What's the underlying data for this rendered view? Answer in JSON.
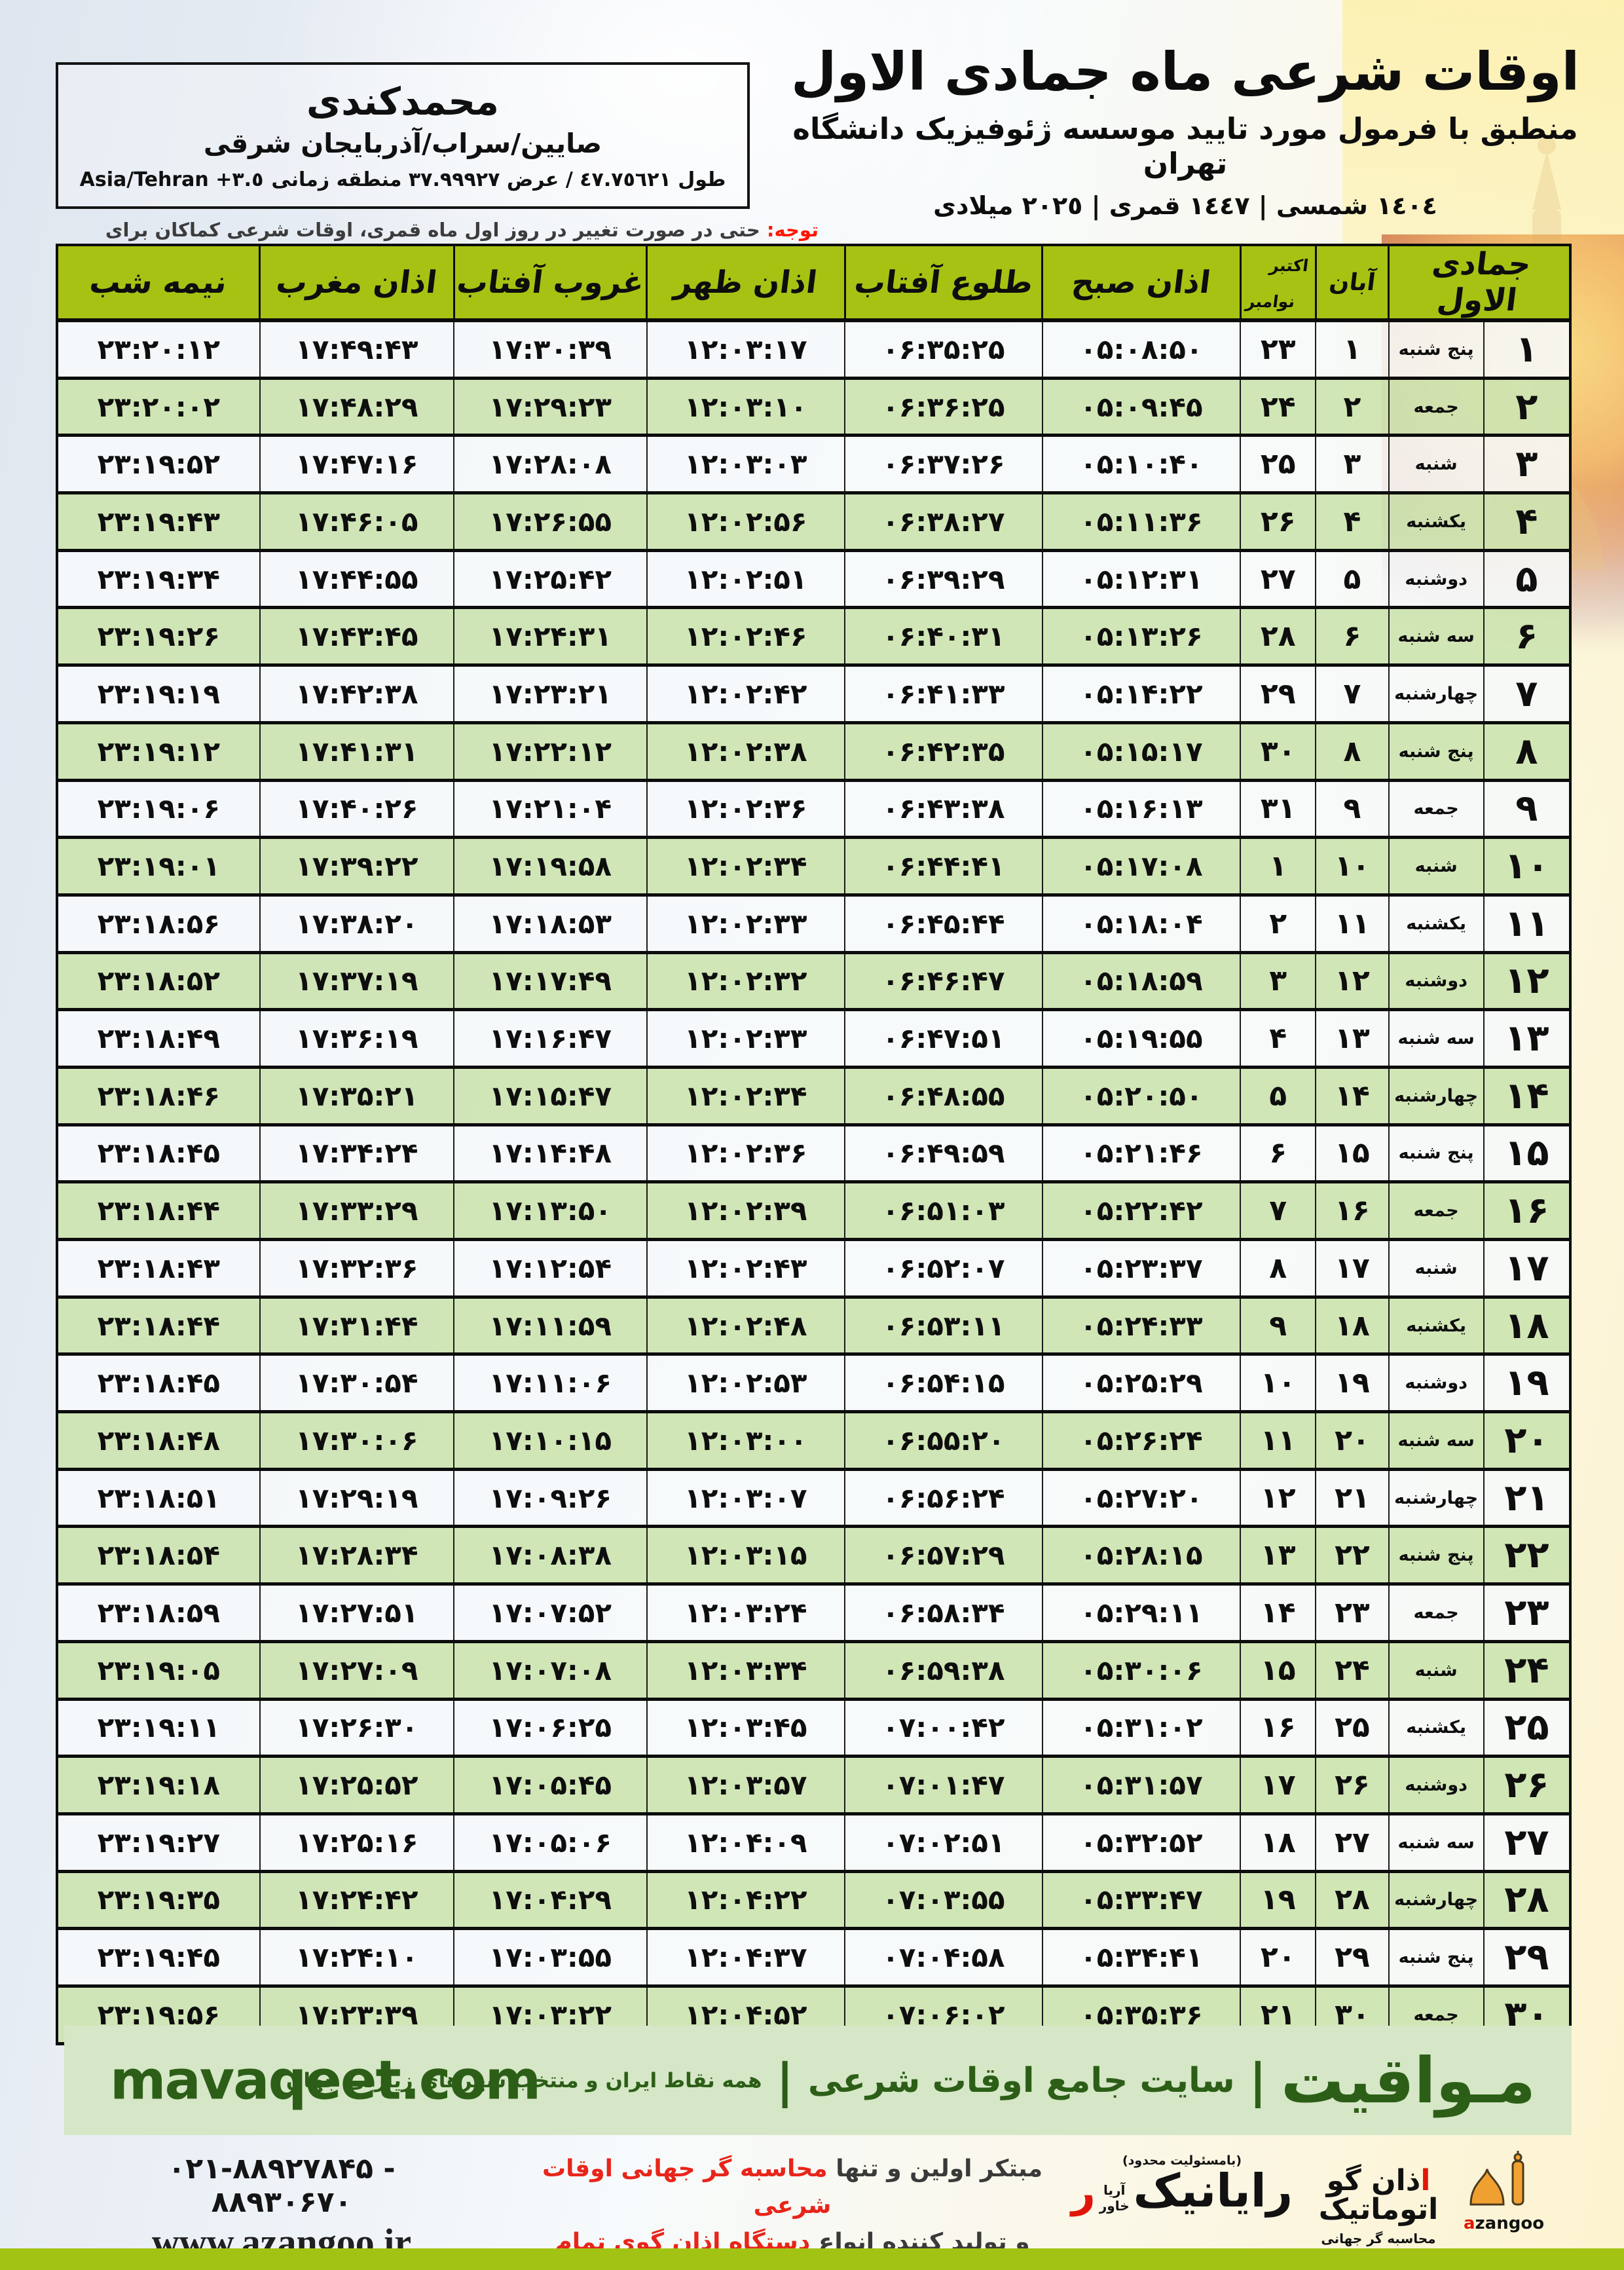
{
  "header": {
    "title": "اوقات شرعی ماه جمادی الاول",
    "subtitle": "منطبق با فرمول مورد تایید موسسه ژئوفیزیک دانشگاه تهران",
    "dates": "١٤٠٤ شمسی | ١٤٤٧ قمری | ٢٠٢٥ میلادی"
  },
  "location": {
    "name": "محمدکندی",
    "region": "صایین/سراب/آذربایجان شرقی",
    "coords_fa": "طول ٤٧.٧٥٦٢١ / عرض ٣٧.٩٩٩٢٧ منطقه زمانی",
    "coords_tz": "Asia/Tehran +٣.٥"
  },
  "note": {
    "label": "توجه:",
    "text": "حتی در صورت تغییر در روز اول ماه قمری، اوقات شرعی کماکان برای روزهای شمسی و میلادی معتبر است."
  },
  "table": {
    "headers": {
      "jamadi": "جمادی الاول",
      "aban": "آبان",
      "october": "اکتبر",
      "november": "نوامبر",
      "sobh": "اذان صبح",
      "tolu": "طلوع آفتاب",
      "zohr": "اذان ظهر",
      "ghorub": "غروب آفتاب",
      "maghreb": "اذان مغرب",
      "nimeshab": "نیمه شب"
    },
    "rows": [
      {
        "d": "۱",
        "wd": "پنج شنبه",
        "aban": "۱",
        "greg": "۲۳",
        "sobh": "۰۵:۰۸:۵۰",
        "tolu": "۰۶:۳۵:۲۵",
        "zohr": "۱۲:۰۳:۱۷",
        "ghorub": "۱۷:۳۰:۳۹",
        "maghreb": "۱۷:۴۹:۴۳",
        "nime": "۲۳:۲۰:۱۲",
        "friday": false
      },
      {
        "d": "۲",
        "wd": "جمعه",
        "aban": "۲",
        "greg": "۲۴",
        "sobh": "۰۵:۰۹:۴۵",
        "tolu": "۰۶:۳۶:۲۵",
        "zohr": "۱۲:۰۳:۱۰",
        "ghorub": "۱۷:۲۹:۲۳",
        "maghreb": "۱۷:۴۸:۲۹",
        "nime": "۲۳:۲۰:۰۲",
        "friday": true
      },
      {
        "d": "۳",
        "wd": "شنبه",
        "aban": "۳",
        "greg": "۲۵",
        "sobh": "۰۵:۱۰:۴۰",
        "tolu": "۰۶:۳۷:۲۶",
        "zohr": "۱۲:۰۳:۰۳",
        "ghorub": "۱۷:۲۸:۰۸",
        "maghreb": "۱۷:۴۷:۱۶",
        "nime": "۲۳:۱۹:۵۲",
        "friday": false
      },
      {
        "d": "۴",
        "wd": "یکشنبه",
        "aban": "۴",
        "greg": "۲۶",
        "sobh": "۰۵:۱۱:۳۶",
        "tolu": "۰۶:۳۸:۲۷",
        "zohr": "۱۲:۰۲:۵۶",
        "ghorub": "۱۷:۲۶:۵۵",
        "maghreb": "۱۷:۴۶:۰۵",
        "nime": "۲۳:۱۹:۴۳",
        "friday": false
      },
      {
        "d": "۵",
        "wd": "دوشنبه",
        "aban": "۵",
        "greg": "۲۷",
        "sobh": "۰۵:۱۲:۳۱",
        "tolu": "۰۶:۳۹:۲۹",
        "zohr": "۱۲:۰۲:۵۱",
        "ghorub": "۱۷:۲۵:۴۲",
        "maghreb": "۱۷:۴۴:۵۵",
        "nime": "۲۳:۱۹:۳۴",
        "friday": false
      },
      {
        "d": "۶",
        "wd": "سه شنبه",
        "aban": "۶",
        "greg": "۲۸",
        "sobh": "۰۵:۱۳:۲۶",
        "tolu": "۰۶:۴۰:۳۱",
        "zohr": "۱۲:۰۲:۴۶",
        "ghorub": "۱۷:۲۴:۳۱",
        "maghreb": "۱۷:۴۳:۴۵",
        "nime": "۲۳:۱۹:۲۶",
        "friday": false
      },
      {
        "d": "۷",
        "wd": "چهارشنبه",
        "aban": "۷",
        "greg": "۲۹",
        "sobh": "۰۵:۱۴:۲۲",
        "tolu": "۰۶:۴۱:۳۳",
        "zohr": "۱۲:۰۲:۴۲",
        "ghorub": "۱۷:۲۳:۲۱",
        "maghreb": "۱۷:۴۲:۳۸",
        "nime": "۲۳:۱۹:۱۹",
        "friday": false
      },
      {
        "d": "۸",
        "wd": "پنج شنبه",
        "aban": "۸",
        "greg": "۳۰",
        "sobh": "۰۵:۱۵:۱۷",
        "tolu": "۰۶:۴۲:۳۵",
        "zohr": "۱۲:۰۲:۳۸",
        "ghorub": "۱۷:۲۲:۱۲",
        "maghreb": "۱۷:۴۱:۳۱",
        "nime": "۲۳:۱۹:۱۲",
        "friday": false
      },
      {
        "d": "۹",
        "wd": "جمعه",
        "aban": "۹",
        "greg": "۳۱",
        "sobh": "۰۵:۱۶:۱۳",
        "tolu": "۰۶:۴۳:۳۸",
        "zohr": "۱۲:۰۲:۳۶",
        "ghorub": "۱۷:۲۱:۰۴",
        "maghreb": "۱۷:۴۰:۲۶",
        "nime": "۲۳:۱۹:۰۶",
        "friday": true
      },
      {
        "d": "۱۰",
        "wd": "شنبه",
        "aban": "۱۰",
        "greg": "۱",
        "sobh": "۰۵:۱۷:۰۸",
        "tolu": "۰۶:۴۴:۴۱",
        "zohr": "۱۲:۰۲:۳۴",
        "ghorub": "۱۷:۱۹:۵۸",
        "maghreb": "۱۷:۳۹:۲۲",
        "nime": "۲۳:۱۹:۰۱",
        "friday": false
      },
      {
        "d": "۱۱",
        "wd": "یکشنبه",
        "aban": "۱۱",
        "greg": "۲",
        "sobh": "۰۵:۱۸:۰۴",
        "tolu": "۰۶:۴۵:۴۴",
        "zohr": "۱۲:۰۲:۳۳",
        "ghorub": "۱۷:۱۸:۵۳",
        "maghreb": "۱۷:۳۸:۲۰",
        "nime": "۲۳:۱۸:۵۶",
        "friday": false
      },
      {
        "d": "۱۲",
        "wd": "دوشنبه",
        "aban": "۱۲",
        "greg": "۳",
        "sobh": "۰۵:۱۸:۵۹",
        "tolu": "۰۶:۴۶:۴۷",
        "zohr": "۱۲:۰۲:۳۲",
        "ghorub": "۱۷:۱۷:۴۹",
        "maghreb": "۱۷:۳۷:۱۹",
        "nime": "۲۳:۱۸:۵۲",
        "friday": false
      },
      {
        "d": "۱۳",
        "wd": "سه شنبه",
        "aban": "۱۳",
        "greg": "۴",
        "sobh": "۰۵:۱۹:۵۵",
        "tolu": "۰۶:۴۷:۵۱",
        "zohr": "۱۲:۰۲:۳۳",
        "ghorub": "۱۷:۱۶:۴۷",
        "maghreb": "۱۷:۳۶:۱۹",
        "nime": "۲۳:۱۸:۴۹",
        "friday": false
      },
      {
        "d": "۱۴",
        "wd": "چهارشنبه",
        "aban": "۱۴",
        "greg": "۵",
        "sobh": "۰۵:۲۰:۵۰",
        "tolu": "۰۶:۴۸:۵۵",
        "zohr": "۱۲:۰۲:۳۴",
        "ghorub": "۱۷:۱۵:۴۷",
        "maghreb": "۱۷:۳۵:۲۱",
        "nime": "۲۳:۱۸:۴۶",
        "friday": false
      },
      {
        "d": "۱۵",
        "wd": "پنج شنبه",
        "aban": "۱۵",
        "greg": "۶",
        "sobh": "۰۵:۲۱:۴۶",
        "tolu": "۰۶:۴۹:۵۹",
        "zohr": "۱۲:۰۲:۳۶",
        "ghorub": "۱۷:۱۴:۴۸",
        "maghreb": "۱۷:۳۴:۲۴",
        "nime": "۲۳:۱۸:۴۵",
        "friday": false
      },
      {
        "d": "۱۶",
        "wd": "جمعه",
        "aban": "۱۶",
        "greg": "۷",
        "sobh": "۰۵:۲۲:۴۲",
        "tolu": "۰۶:۵۱:۰۳",
        "zohr": "۱۲:۰۲:۳۹",
        "ghorub": "۱۷:۱۳:۵۰",
        "maghreb": "۱۷:۳۳:۲۹",
        "nime": "۲۳:۱۸:۴۴",
        "friday": true
      },
      {
        "d": "۱۷",
        "wd": "شنبه",
        "aban": "۱۷",
        "greg": "۸",
        "sobh": "۰۵:۲۳:۳۷",
        "tolu": "۰۶:۵۲:۰۷",
        "zohr": "۱۲:۰۲:۴۳",
        "ghorub": "۱۷:۱۲:۵۴",
        "maghreb": "۱۷:۳۲:۳۶",
        "nime": "۲۳:۱۸:۴۳",
        "friday": false
      },
      {
        "d": "۱۸",
        "wd": "یکشنبه",
        "aban": "۱۸",
        "greg": "۹",
        "sobh": "۰۵:۲۴:۳۳",
        "tolu": "۰۶:۵۳:۱۱",
        "zohr": "۱۲:۰۲:۴۸",
        "ghorub": "۱۷:۱۱:۵۹",
        "maghreb": "۱۷:۳۱:۴۴",
        "nime": "۲۳:۱۸:۴۴",
        "friday": false
      },
      {
        "d": "۱۹",
        "wd": "دوشنبه",
        "aban": "۱۹",
        "greg": "۱۰",
        "sobh": "۰۵:۲۵:۲۹",
        "tolu": "۰۶:۵۴:۱۵",
        "zohr": "۱۲:۰۲:۵۳",
        "ghorub": "۱۷:۱۱:۰۶",
        "maghreb": "۱۷:۳۰:۵۴",
        "nime": "۲۳:۱۸:۴۵",
        "friday": false
      },
      {
        "d": "۲۰",
        "wd": "سه شنبه",
        "aban": "۲۰",
        "greg": "۱۱",
        "sobh": "۰۵:۲۶:۲۴",
        "tolu": "۰۶:۵۵:۲۰",
        "zohr": "۱۲:۰۳:۰۰",
        "ghorub": "۱۷:۱۰:۱۵",
        "maghreb": "۱۷:۳۰:۰۶",
        "nime": "۲۳:۱۸:۴۸",
        "friday": false
      },
      {
        "d": "۲۱",
        "wd": "چهارشنبه",
        "aban": "۲۱",
        "greg": "۱۲",
        "sobh": "۰۵:۲۷:۲۰",
        "tolu": "۰۶:۵۶:۲۴",
        "zohr": "۱۲:۰۳:۰۷",
        "ghorub": "۱۷:۰۹:۲۶",
        "maghreb": "۱۷:۲۹:۱۹",
        "nime": "۲۳:۱۸:۵۱",
        "friday": false
      },
      {
        "d": "۲۲",
        "wd": "پنج شنبه",
        "aban": "۲۲",
        "greg": "۱۳",
        "sobh": "۰۵:۲۸:۱۵",
        "tolu": "۰۶:۵۷:۲۹",
        "zohr": "۱۲:۰۳:۱۵",
        "ghorub": "۱۷:۰۸:۳۸",
        "maghreb": "۱۷:۲۸:۳۴",
        "nime": "۲۳:۱۸:۵۴",
        "friday": false
      },
      {
        "d": "۲۳",
        "wd": "جمعه",
        "aban": "۲۳",
        "greg": "۱۴",
        "sobh": "۰۵:۲۹:۱۱",
        "tolu": "۰۶:۵۸:۳۴",
        "zohr": "۱۲:۰۳:۲۴",
        "ghorub": "۱۷:۰۷:۵۲",
        "maghreb": "۱۷:۲۷:۵۱",
        "nime": "۲۳:۱۸:۵۹",
        "friday": true
      },
      {
        "d": "۲۴",
        "wd": "شنبه",
        "aban": "۲۴",
        "greg": "۱۵",
        "sobh": "۰۵:۳۰:۰۶",
        "tolu": "۰۶:۵۹:۳۸",
        "zohr": "۱۲:۰۳:۳۴",
        "ghorub": "۱۷:۰۷:۰۸",
        "maghreb": "۱۷:۲۷:۰۹",
        "nime": "۲۳:۱۹:۰۵",
        "friday": false
      },
      {
        "d": "۲۵",
        "wd": "یکشنبه",
        "aban": "۲۵",
        "greg": "۱۶",
        "sobh": "۰۵:۳۱:۰۲",
        "tolu": "۰۷:۰۰:۴۲",
        "zohr": "۱۲:۰۳:۴۵",
        "ghorub": "۱۷:۰۶:۲۵",
        "maghreb": "۱۷:۲۶:۳۰",
        "nime": "۲۳:۱۹:۱۱",
        "friday": false
      },
      {
        "d": "۲۶",
        "wd": "دوشنبه",
        "aban": "۲۶",
        "greg": "۱۷",
        "sobh": "۰۵:۳۱:۵۷",
        "tolu": "۰۷:۰۱:۴۷",
        "zohr": "۱۲:۰۳:۵۷",
        "ghorub": "۱۷:۰۵:۴۵",
        "maghreb": "۱۷:۲۵:۵۲",
        "nime": "۲۳:۱۹:۱۸",
        "friday": false
      },
      {
        "d": "۲۷",
        "wd": "سه شنبه",
        "aban": "۲۷",
        "greg": "۱۸",
        "sobh": "۰۵:۳۲:۵۲",
        "tolu": "۰۷:۰۲:۵۱",
        "zohr": "۱۲:۰۴:۰۹",
        "ghorub": "۱۷:۰۵:۰۶",
        "maghreb": "۱۷:۲۵:۱۶",
        "nime": "۲۳:۱۹:۲۷",
        "friday": false
      },
      {
        "d": "۲۸",
        "wd": "چهارشنبه",
        "aban": "۲۸",
        "greg": "۱۹",
        "sobh": "۰۵:۳۳:۴۷",
        "tolu": "۰۷:۰۳:۵۵",
        "zohr": "۱۲:۰۴:۲۲",
        "ghorub": "۱۷:۰۴:۲۹",
        "maghreb": "۱۷:۲۴:۴۲",
        "nime": "۲۳:۱۹:۳۵",
        "friday": false
      },
      {
        "d": "۲۹",
        "wd": "پنج شنبه",
        "aban": "۲۹",
        "greg": "۲۰",
        "sobh": "۰۵:۳۴:۴۱",
        "tolu": "۰۷:۰۴:۵۸",
        "zohr": "۱۲:۰۴:۳۷",
        "ghorub": "۱۷:۰۳:۵۵",
        "maghreb": "۱۷:۲۴:۱۰",
        "nime": "۲۳:۱۹:۴۵",
        "friday": false
      },
      {
        "d": "۳۰",
        "wd": "جمعه",
        "aban": "۳۰",
        "greg": "۲۱",
        "sobh": "۰۵:۳۵:۳۶",
        "tolu": "۰۷:۰۶:۰۲",
        "zohr": "۱۲:۰۴:۵۲",
        "ghorub": "۱۷:۰۳:۲۲",
        "maghreb": "۱۷:۲۳:۳۹",
        "nime": "۲۳:۱۹:۵۶",
        "friday": true
      }
    ]
  },
  "footer": {
    "brand": "مـواقیت",
    "sep": "|",
    "site_label": "سایت جامع اوقات شرعی",
    "coverage": "همه نقاط ایران و منتخب شهرهای زیارتی جهان",
    "domain": "mavaqeet.com"
  },
  "bottom": {
    "phone": "۰۲۱-۸۸۹۲۷۸۴۵ - ۸۸۹۳۰۶۷۰",
    "url": "www.azangoo.ir",
    "slogan1_black": "مبتکر اولین و تنها ",
    "slogan1_red": "محاسبه گر جهانی اوقات شرعی",
    "slogan2_black": "و تولید کننده انواع ",
    "slogan2_red": "دستگاه اذان گوی تمام خودکار ماهواره ای",
    "rayanik": {
      "note": "(بامسئولیت محدود)",
      "side1": "آریا",
      "side2": "خاور",
      "main": "رایانیک",
      "accent": "ر"
    },
    "azangoo": {
      "main": "اذان گو اتوماتیک",
      "sub": "محاسبه گر جهانی اوقات شرعی",
      "latin_a": "a",
      "latin_rest": "zangoo"
    }
  },
  "colors": {
    "header_green": "#a7c213",
    "row_green": "#cde4b2",
    "friday_red": "#ef1105",
    "footer_bar_green": "#d5e7c6",
    "footer_text_green": "#2c5e17",
    "olive_bar": "#a2c313"
  }
}
